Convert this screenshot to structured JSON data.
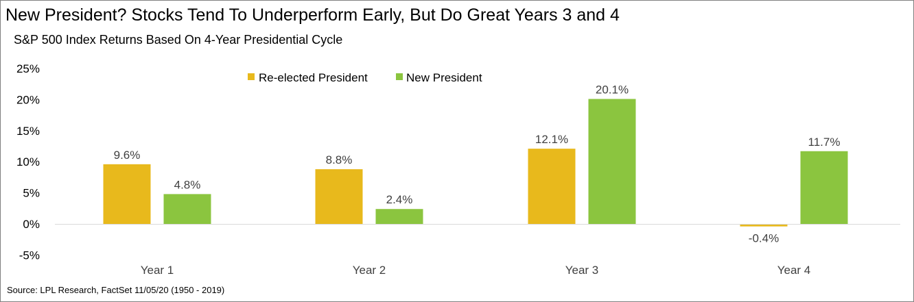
{
  "title": "New President? Stocks Tend To Underperform Early, But Do Great Years 3 and 4",
  "subtitle": "S&P 500 Index Returns Based On 4-Year Presidential Cycle",
  "source": "Source: LPL Research,  FactSet 11/05/20  (1950 - 2019)",
  "colors": {
    "reelected": "#E8B91C",
    "new": "#8BC53F",
    "axis": "#d9d9d9"
  },
  "chart_data": {
    "type": "bar",
    "title": "New President? Stocks Tend To Underperform Early, But Do Great Years 3 and 4",
    "subtitle": "S&P 500 Index Returns Based On 4-Year Presidential Cycle",
    "categories": [
      "Year 1",
      "Year 2",
      "Year 3",
      "Year 4"
    ],
    "series": [
      {
        "name": "Re-elected President",
        "values": [
          9.6,
          8.8,
          12.1,
          -0.4
        ],
        "labels": [
          "9.6%",
          "8.8%",
          "12.1%",
          "-0.4%"
        ]
      },
      {
        "name": "New President",
        "values": [
          4.8,
          2.4,
          20.1,
          11.7
        ],
        "labels": [
          "4.8%",
          "2.4%",
          "20.1%",
          "11.7%"
        ]
      }
    ],
    "ylim": [
      -5,
      25
    ],
    "yticks": [
      25,
      20,
      15,
      10,
      5,
      0,
      -5
    ],
    "ytick_labels": [
      "25%",
      "20%",
      "15%",
      "10%",
      "5%",
      "0%",
      "-5%"
    ],
    "xlabel": "",
    "ylabel": "",
    "grid": false,
    "legend_position": "top-left"
  }
}
